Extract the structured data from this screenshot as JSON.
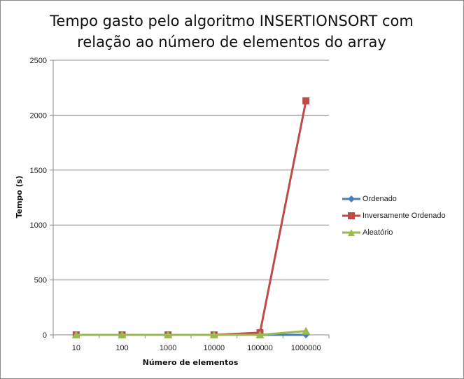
{
  "chart_data": {
    "type": "line",
    "title_lines": [
      "Tempo gasto pelo algoritmo INSERTIONSORT com",
      "relação ao número de elementos do array"
    ],
    "xlabel": "Número de elementos",
    "ylabel": "Tempo (s)",
    "categories": [
      "10",
      "100",
      "1000",
      "10000",
      "100000",
      "1000000"
    ],
    "ylim": [
      0,
      2500
    ],
    "yticks": [
      0,
      500,
      1000,
      1500,
      2000,
      2500
    ],
    "grid": true,
    "legend": "right",
    "series": [
      {
        "name": "Ordenado",
        "color": "#4a7ebb",
        "marker": "diamond",
        "values": [
          0,
          0,
          0,
          0,
          0,
          0
        ]
      },
      {
        "name": "Inversamente Ordenado",
        "color": "#be4b48",
        "marker": "square",
        "values": [
          0,
          0,
          0,
          0,
          20,
          2130
        ]
      },
      {
        "name": "Aleatório",
        "color": "#98b954",
        "marker": "triangle",
        "values": [
          0,
          0,
          0,
          0,
          0,
          35
        ]
      }
    ]
  }
}
